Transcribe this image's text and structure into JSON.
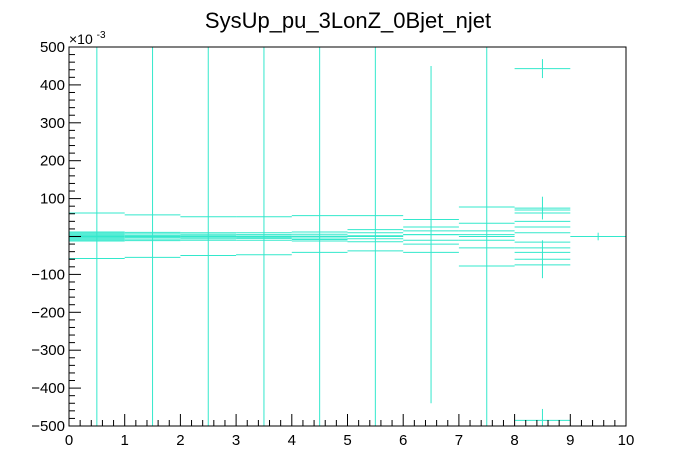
{
  "chart_data": {
    "type": "scatter",
    "title": "SysUp_pu_3LonZ_0Bjet_njet",
    "xlabel": "",
    "ylabel": "",
    "xlim": [
      0,
      10
    ],
    "ylim": [
      -500,
      500
    ],
    "y_multiplier_label": "×10",
    "y_multiplier_exponent": "-3",
    "x_ticks": [
      "0",
      "1",
      "2",
      "3",
      "4",
      "5",
      "6",
      "7",
      "8",
      "9",
      "10"
    ],
    "y_ticks": [
      "−500",
      "−400",
      "−300",
      "−200",
      "−100",
      "100",
      "200",
      "300",
      "400",
      "500"
    ],
    "y_tick_values": [
      -500,
      -400,
      -300,
      -200,
      -100,
      100,
      200,
      300,
      400,
      500
    ],
    "color": "#33e8cc",
    "grid": false,
    "series": [
      {
        "points": [
          {
            "x": 0.5,
            "xerr": 0.5,
            "y": 62,
            "yerr": 0
          },
          {
            "x": 0.5,
            "xerr": 0.5,
            "y": 12,
            "yerr": 0
          },
          {
            "x": 0.5,
            "xerr": 0.5,
            "y": 9,
            "yerr": 0
          },
          {
            "x": 0.5,
            "xerr": 0.5,
            "y": 6,
            "yerr": 0
          },
          {
            "x": 0.5,
            "xerr": 0.5,
            "y": 3,
            "yerr": 0
          },
          {
            "x": 0.5,
            "xerr": 0.5,
            "y": 0,
            "yerr": 500
          },
          {
            "x": 0.5,
            "xerr": 0.5,
            "y": -3,
            "yerr": 0
          },
          {
            "x": 0.5,
            "xerr": 0.5,
            "y": -6,
            "yerr": 0
          },
          {
            "x": 0.5,
            "xerr": 0.5,
            "y": -9,
            "yerr": 0
          },
          {
            "x": 0.5,
            "xerr": 0.5,
            "y": -12,
            "yerr": 0
          },
          {
            "x": 0.5,
            "xerr": 0.5,
            "y": -58,
            "yerr": 0
          },
          {
            "x": 1.5,
            "xerr": 0.5,
            "y": 57,
            "yerr": 0
          },
          {
            "x": 1.5,
            "xerr": 0.5,
            "y": 11,
            "yerr": 0
          },
          {
            "x": 1.5,
            "xerr": 0.5,
            "y": 7,
            "yerr": 0
          },
          {
            "x": 1.5,
            "xerr": 0.5,
            "y": 3,
            "yerr": 0
          },
          {
            "x": 1.5,
            "xerr": 0.5,
            "y": 0,
            "yerr": 500
          },
          {
            "x": 1.5,
            "xerr": 0.5,
            "y": -3,
            "yerr": 0
          },
          {
            "x": 1.5,
            "xerr": 0.5,
            "y": -7,
            "yerr": 0
          },
          {
            "x": 1.5,
            "xerr": 0.5,
            "y": -11,
            "yerr": 0
          },
          {
            "x": 1.5,
            "xerr": 0.5,
            "y": -55,
            "yerr": 0
          },
          {
            "x": 2.5,
            "xerr": 0.5,
            "y": 52,
            "yerr": 0
          },
          {
            "x": 2.5,
            "xerr": 0.5,
            "y": 10,
            "yerr": 0
          },
          {
            "x": 2.5,
            "xerr": 0.5,
            "y": 6,
            "yerr": 0
          },
          {
            "x": 2.5,
            "xerr": 0.5,
            "y": 2,
            "yerr": 0
          },
          {
            "x": 2.5,
            "xerr": 0.5,
            "y": 0,
            "yerr": 500
          },
          {
            "x": 2.5,
            "xerr": 0.5,
            "y": -2,
            "yerr": 0
          },
          {
            "x": 2.5,
            "xerr": 0.5,
            "y": -6,
            "yerr": 0
          },
          {
            "x": 2.5,
            "xerr": 0.5,
            "y": -10,
            "yerr": 0
          },
          {
            "x": 2.5,
            "xerr": 0.5,
            "y": -50,
            "yerr": 0
          },
          {
            "x": 3.5,
            "xerr": 0.5,
            "y": 52,
            "yerr": 0
          },
          {
            "x": 3.5,
            "xerr": 0.5,
            "y": 10,
            "yerr": 0
          },
          {
            "x": 3.5,
            "xerr": 0.5,
            "y": 5,
            "yerr": 0
          },
          {
            "x": 3.5,
            "xerr": 0.5,
            "y": 1,
            "yerr": 0
          },
          {
            "x": 3.5,
            "xerr": 0.5,
            "y": 0,
            "yerr": 500
          },
          {
            "x": 3.5,
            "xerr": 0.5,
            "y": -2,
            "yerr": 0
          },
          {
            "x": 3.5,
            "xerr": 0.5,
            "y": -5,
            "yerr": 0
          },
          {
            "x": 3.5,
            "xerr": 0.5,
            "y": -10,
            "yerr": 0
          },
          {
            "x": 3.5,
            "xerr": 0.5,
            "y": -48,
            "yerr": 0
          },
          {
            "x": 4.5,
            "xerr": 0.5,
            "y": 55,
            "yerr": 0
          },
          {
            "x": 4.5,
            "xerr": 0.5,
            "y": 12,
            "yerr": 0
          },
          {
            "x": 4.5,
            "xerr": 0.5,
            "y": 6,
            "yerr": 0
          },
          {
            "x": 4.5,
            "xerr": 0.5,
            "y": 1,
            "yerr": 0
          },
          {
            "x": 4.5,
            "xerr": 0.5,
            "y": 0,
            "yerr": 500
          },
          {
            "x": 4.5,
            "xerr": 0.5,
            "y": -4,
            "yerr": 0
          },
          {
            "x": 4.5,
            "xerr": 0.5,
            "y": -8,
            "yerr": 0
          },
          {
            "x": 4.5,
            "xerr": 0.5,
            "y": -12,
            "yerr": 0
          },
          {
            "x": 4.5,
            "xerr": 0.5,
            "y": -42,
            "yerr": 0
          },
          {
            "x": 5.5,
            "xerr": 0.5,
            "y": 55,
            "yerr": 0
          },
          {
            "x": 5.5,
            "xerr": 0.5,
            "y": 18,
            "yerr": 0
          },
          {
            "x": 5.5,
            "xerr": 0.5,
            "y": 10,
            "yerr": 0
          },
          {
            "x": 5.5,
            "xerr": 0.5,
            "y": 2,
            "yerr": 0
          },
          {
            "x": 5.5,
            "xerr": 0.5,
            "y": 0,
            "yerr": 500
          },
          {
            "x": 5.5,
            "xerr": 0.5,
            "y": -6,
            "yerr": 0
          },
          {
            "x": 5.5,
            "xerr": 0.5,
            "y": -14,
            "yerr": 0
          },
          {
            "x": 5.5,
            "xerr": 0.5,
            "y": -38,
            "yerr": 0
          },
          {
            "x": 6.5,
            "xerr": 0.5,
            "y": 45,
            "yerr": 0
          },
          {
            "x": 6.5,
            "xerr": 0.5,
            "y": 25,
            "yerr": 0
          },
          {
            "x": 6.5,
            "xerr": 0.5,
            "y": 15,
            "yerr": 0
          },
          {
            "x": 6.5,
            "xerr": 0.5,
            "y": 5,
            "yerr": 0
          },
          {
            "x": 6.5,
            "xerr": 0.5,
            "y": 5,
            "yerr": 445
          },
          {
            "x": 6.5,
            "xerr": 0.5,
            "y": -10,
            "yerr": 0
          },
          {
            "x": 6.5,
            "xerr": 0.5,
            "y": -20,
            "yerr": 0
          },
          {
            "x": 6.5,
            "xerr": 0.5,
            "y": -42,
            "yerr": 0
          },
          {
            "x": 7.5,
            "xerr": 0.5,
            "y": 78,
            "yerr": 0
          },
          {
            "x": 7.5,
            "xerr": 0.5,
            "y": 35,
            "yerr": 0
          },
          {
            "x": 7.5,
            "xerr": 0.5,
            "y": 15,
            "yerr": 0
          },
          {
            "x": 7.5,
            "xerr": 0.5,
            "y": 5,
            "yerr": 0
          },
          {
            "x": 7.5,
            "xerr": 0.5,
            "y": 0,
            "yerr": 500
          },
          {
            "x": 7.5,
            "xerr": 0.5,
            "y": -10,
            "yerr": 0
          },
          {
            "x": 7.5,
            "xerr": 0.5,
            "y": -30,
            "yerr": 0
          },
          {
            "x": 7.5,
            "xerr": 0.5,
            "y": -78,
            "yerr": 0
          },
          {
            "x": 8.5,
            "xerr": 0.5,
            "y": 443,
            "yerr": 25
          },
          {
            "x": 8.5,
            "xerr": 0.5,
            "y": 75,
            "yerr": 30
          },
          {
            "x": 8.5,
            "xerr": 0.5,
            "y": 70,
            "yerr": 0
          },
          {
            "x": 8.5,
            "xerr": 0.5,
            "y": 62,
            "yerr": 0
          },
          {
            "x": 8.5,
            "xerr": 0.5,
            "y": 40,
            "yerr": 0
          },
          {
            "x": 8.5,
            "xerr": 0.5,
            "y": 25,
            "yerr": 0
          },
          {
            "x": 8.5,
            "xerr": 0.5,
            "y": 10,
            "yerr": 0
          },
          {
            "x": 8.5,
            "xerr": 0.5,
            "y": -15,
            "yerr": 0
          },
          {
            "x": 8.5,
            "xerr": 0.5,
            "y": -30,
            "yerr": 0
          },
          {
            "x": 8.5,
            "xerr": 0.5,
            "y": -42,
            "yerr": 0
          },
          {
            "x": 8.5,
            "xerr": 0.5,
            "y": -60,
            "yerr": 50
          },
          {
            "x": 8.5,
            "xerr": 0.5,
            "y": -75,
            "yerr": 0
          },
          {
            "x": 8.5,
            "xerr": 0.5,
            "y": -485,
            "yerr": 30
          },
          {
            "x": 9.5,
            "xerr": 0.5,
            "y": 0,
            "yerr": 10
          }
        ]
      }
    ]
  }
}
